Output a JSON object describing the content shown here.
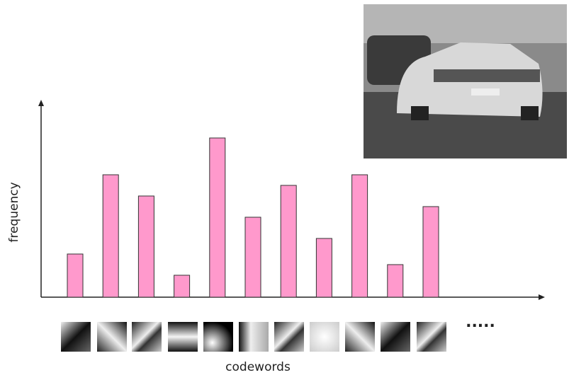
{
  "chart_data": {
    "type": "bar",
    "y_label": "frequency",
    "x_label": "codewords",
    "continuation": ".....",
    "values": [
      61,
      173,
      143,
      31,
      225,
      113,
      158,
      83,
      173,
      46,
      128
    ],
    "color": "#ff99cc",
    "ylim": [
      0,
      277
    ]
  }
}
